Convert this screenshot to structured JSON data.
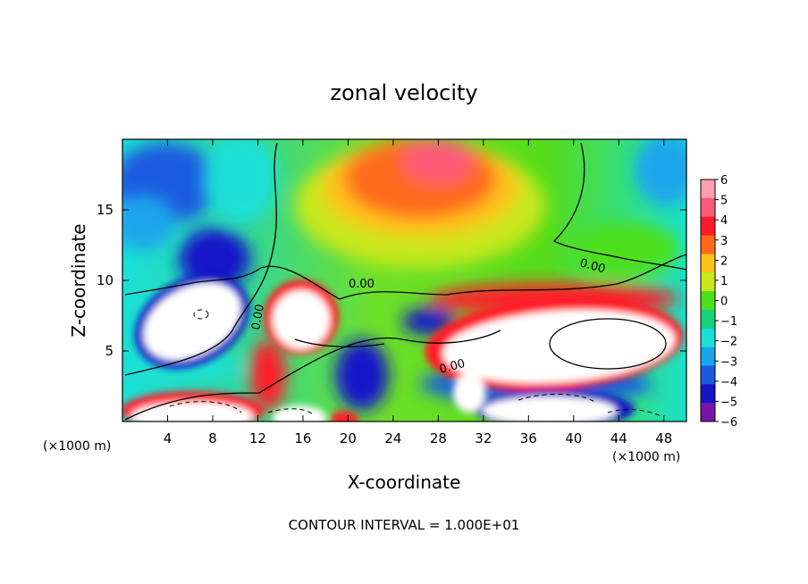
{
  "chart_data": {
    "type": "heatmap",
    "title": "zonal velocity",
    "xlabel": "X-coordinate",
    "ylabel": "Z-coordinate",
    "x_units": "(×1000 m)",
    "y_units": "(×1000 m)",
    "xlim": [
      0,
      50
    ],
    "ylim": [
      0,
      20
    ],
    "x_ticks": [
      4,
      8,
      12,
      16,
      20,
      24,
      28,
      32,
      36,
      40,
      44,
      48
    ],
    "y_ticks": [
      5,
      10,
      15
    ],
    "colorbar": {
      "ticks": [
        6,
        5,
        4,
        3,
        2,
        1,
        0,
        -1,
        -2,
        -3,
        -4,
        -5,
        -6
      ],
      "colors": [
        "#ff9eb0",
        "#ff5a78",
        "#ff1a2a",
        "#ff6a1a",
        "#ffc21a",
        "#c8e81a",
        "#4ee01a",
        "#18d27a",
        "#1ae0d8",
        "#1aa6ec",
        "#1a5ae0",
        "#1414c8",
        "#7a14a8"
      ]
    },
    "contour_label": "0.00",
    "contour_interval_text": "CONTOUR INTERVAL = 1.000E+01"
  }
}
